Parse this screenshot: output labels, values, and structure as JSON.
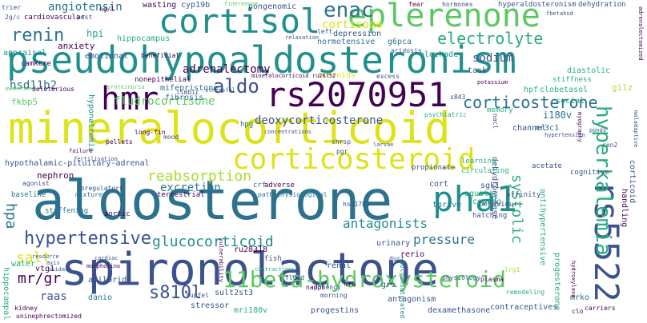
{
  "palette": {
    "c1": "#440154",
    "c2": "#3b528b",
    "c3": "#2c728e",
    "c4": "#21908d",
    "c5": "#27ad81",
    "c6": "#5dc863",
    "c7": "#aadc32",
    "c8": "#dde318"
  },
  "words": {
    "mineralocorticoid": "mineralocorticoid",
    "aldosterone": "aldosterone",
    "spironolactone": "spironolactone",
    "pseudohypoaldosteronism": "pseudohypoaldosteronism",
    "eplerenone": "eplerenone",
    "cortisol": "cortisol",
    "rs2070951": "rs2070951",
    "hmr": "hmr",
    "corticosteroid": "corticosteroid",
    "rs5522": "rs5522",
    "pha1": "pha1",
    "11beta_hydroxysteroid": "11beta-hydroxysteroid",
    "hyperkalemia": "hyperkalemia",
    "corticosterone": "corticosterone",
    "electrolyte": "electrolyte",
    "enac": "enac",
    "renin": "renin",
    "aldo": "aldo",
    "hypertensive": "hypertensive",
    "glucocorticoid": "glucocorticoid",
    "reabsorption": "reabsorption",
    "s810l": "s810l",
    "salt": "salt",
    "hpa": "hpa",
    "mr_gr": "mr/gr",
    "systolic": "systolic",
    "antagonists": "antagonists",
    "pressure": "pressure",
    "adrenalectomy": "adrenalectomy",
    "fludrocortisone": "fludrocortisone",
    "deoxycorticosterone": "deoxycorticosterone",
    "excretion": "excretion",
    "sodium": "sodium",
    "cortisone": "cortisone",
    "angiotensin": "angiotensin",
    "hsd11b2": "hsd11b2",
    "raas": "raas",
    "nonepithelial": "nonepithelial",
    "mifepristone": "mifepristone",
    "fibrosis": "fibrosis",
    "hyponatremia": "hyponatremia",
    "hypothalamic": "hypothalamic-pituitary-adrenal",
    "nephron": "nephron",
    "fkbp5": "fkbp5",
    "camkcre": "camkcre",
    "cardiovascular": "cardiovascular",
    "hippocampus": "hippocampus",
    "anxiety": "anxiety",
    "emotional": "emotional",
    "appraisal": "appraisal",
    "wasting": "wasting",
    "cyp19b": "cyp19b",
    "nongenomic": "nongenomic",
    "depression": "depression",
    "normotensive": "normotensive",
    "g6pca": "g6pca",
    "blockade": "blockade",
    "task": "task",
    "diastolic": "diastolic",
    "hpi": "hpi",
    "i180v": "i180v",
    "clobetasol": "clobetasol",
    "hpf": "hpf",
    "social": "social",
    "channel": "channel",
    "nr3c1": "nr3c1",
    "gilz": "gilz",
    "handling": "handling",
    "corticoid": "corticoid",
    "dehydrogenase": "dehydrogenase",
    "antihypertensive": "antihypertensive",
    "cort": "cort",
    "thrive": "thrive",
    "coping": "coping",
    "aquatic": "aquatic",
    "sgk1": "sgk1",
    "urinary": "urinary",
    "rerio": "rerio",
    "renal": "renal",
    "grs": "grs",
    "ru28318": "ru28318",
    "sult2st3": "sult2st3",
    "amiloride": "amiloride",
    "danio": "danio",
    "vtg1": "vtg1",
    "water": "water",
    "stressor": "stressor",
    "mri180v": "mri180v",
    "progestins": "progestins",
    "antagonism": "antagonism",
    "dexamethasone": "dexamethasone",
    "contraceptives": "contraceptives",
    "progesterone": "progesterone",
    "mrko": "mrko",
    "hippocampal": "hippocampal",
    "hpg": "hpg",
    "crf": "crf",
    "aortic": "aortic",
    "stiffening": "stiffening",
    "baseline": "baseline",
    "terrestrial": "terrestrial",
    "adverse": "adverse",
    "pathophysiological": "pathophysiological",
    "hsd17b3": "hsd17b3",
    "hatching": "hatching",
    "behaviour": "behaviour",
    "affinity": "affinity",
    "learning": "learning",
    "circulating": "circulating",
    "propionate": "propionate",
    "acetate": "acetate",
    "cognitive": "cognitive",
    "memory": "memory",
    "stiffness": "stiffness",
    "steroids": "steroids",
    "hyperaldosteronism": "hyperaldosteronism",
    "dehydration": "dehydration",
    "hormones": "hormones",
    "fear": "fear",
    "finerenone": "finerenone",
    "nadph": "nadph",
    "potency": "potency",
    "morning": "morning",
    "physiology": "physiology",
    "plasma": "plasma",
    "remodeling": "remodeling",
    "carriers": "carriers",
    "kidney": "kidney",
    "uninephrectomized": "uninephrectomized",
    "tupfel": "tupfel",
    "duct": "duct",
    "polyunsaturated": "polyunsaturated",
    "fish": "fish",
    "fluid": "fluid",
    "agonist": "agonist",
    "coregulators": "coregulators",
    "mixtures": "mixtures",
    "pellets": "pellets",
    "long_fin": "long-fin",
    "mood": "mood",
    "ng_l": "ng/l",
    "trier": "trier",
    "two_g_c": "2g/c",
    "post": "post",
    "left": "left",
    "relaxation": "relaxation",
    "acidosis": "acidosis",
    "excess": "excess",
    "mineralocorticoid_ru26752": "mineralocorticoid ru26752",
    "potassium": "potassium",
    "s843": "s843",
    "psychiatric": "psychiatric",
    "nacl": "nacl",
    "ren2": "ren2",
    "pgr": "pgr",
    "shrsp": "shrsp",
    "concentrations": "concentrations",
    "limbic": "limbic",
    "stressful": "stressful",
    "deleterious": "deleterious",
    "awakening": "awakening",
    "proteinuria": "proteinuria",
    "beneficial": "beneficial",
    "failure": "failure",
    "fertilisation": "fertilisation",
    "resource": "resource",
    "axis": "axis",
    "oxidase": "oxidase",
    "cardiac": "cardiac",
    "morpholino": "morpholino",
    "lrg1": "lrg1",
    "adrenalectomized": "adrenalectomized",
    "mra": "mra",
    "clo": "clo",
    "fbetahsd": "fbetahsd",
    "maladaptive": "maladaptive",
    "hydroxylase": "hydroxylase",
    "vulnerability": "vulnerability",
    "contractions": "contractions",
    "ponds": "ponds",
    "hypertension": "hypertension",
    "myography": "myography",
    "larvae": "larvae"
  }
}
